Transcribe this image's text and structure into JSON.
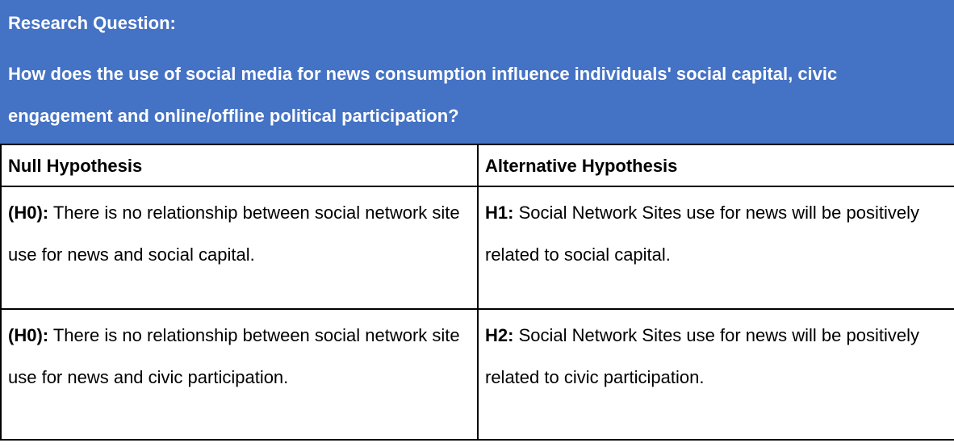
{
  "header": {
    "label": "Research Question:",
    "question": "How does the use of social media for news consumption influence individuals' social capital, civic engagement and online/offline political participation?",
    "background_color": "#4472c4",
    "text_color": "#ffffff"
  },
  "table": {
    "columns": [
      "Null Hypothesis",
      "Alternative Hypothesis"
    ],
    "rows": [
      {
        "null": {
          "tag": "(H0):",
          "text": " There is no relationship between social network site use for news and social capital."
        },
        "alt": {
          "tag": "H1:",
          "text": " Social Network Sites use for news will be positively related to social capital."
        }
      },
      {
        "null": {
          "tag": "(H0):",
          "text": " There is no relationship between social network site use for news and civic participation."
        },
        "alt": {
          "tag": "H2:",
          "text": " Social Network Sites use for news will be positively related to civic participation."
        }
      }
    ]
  }
}
